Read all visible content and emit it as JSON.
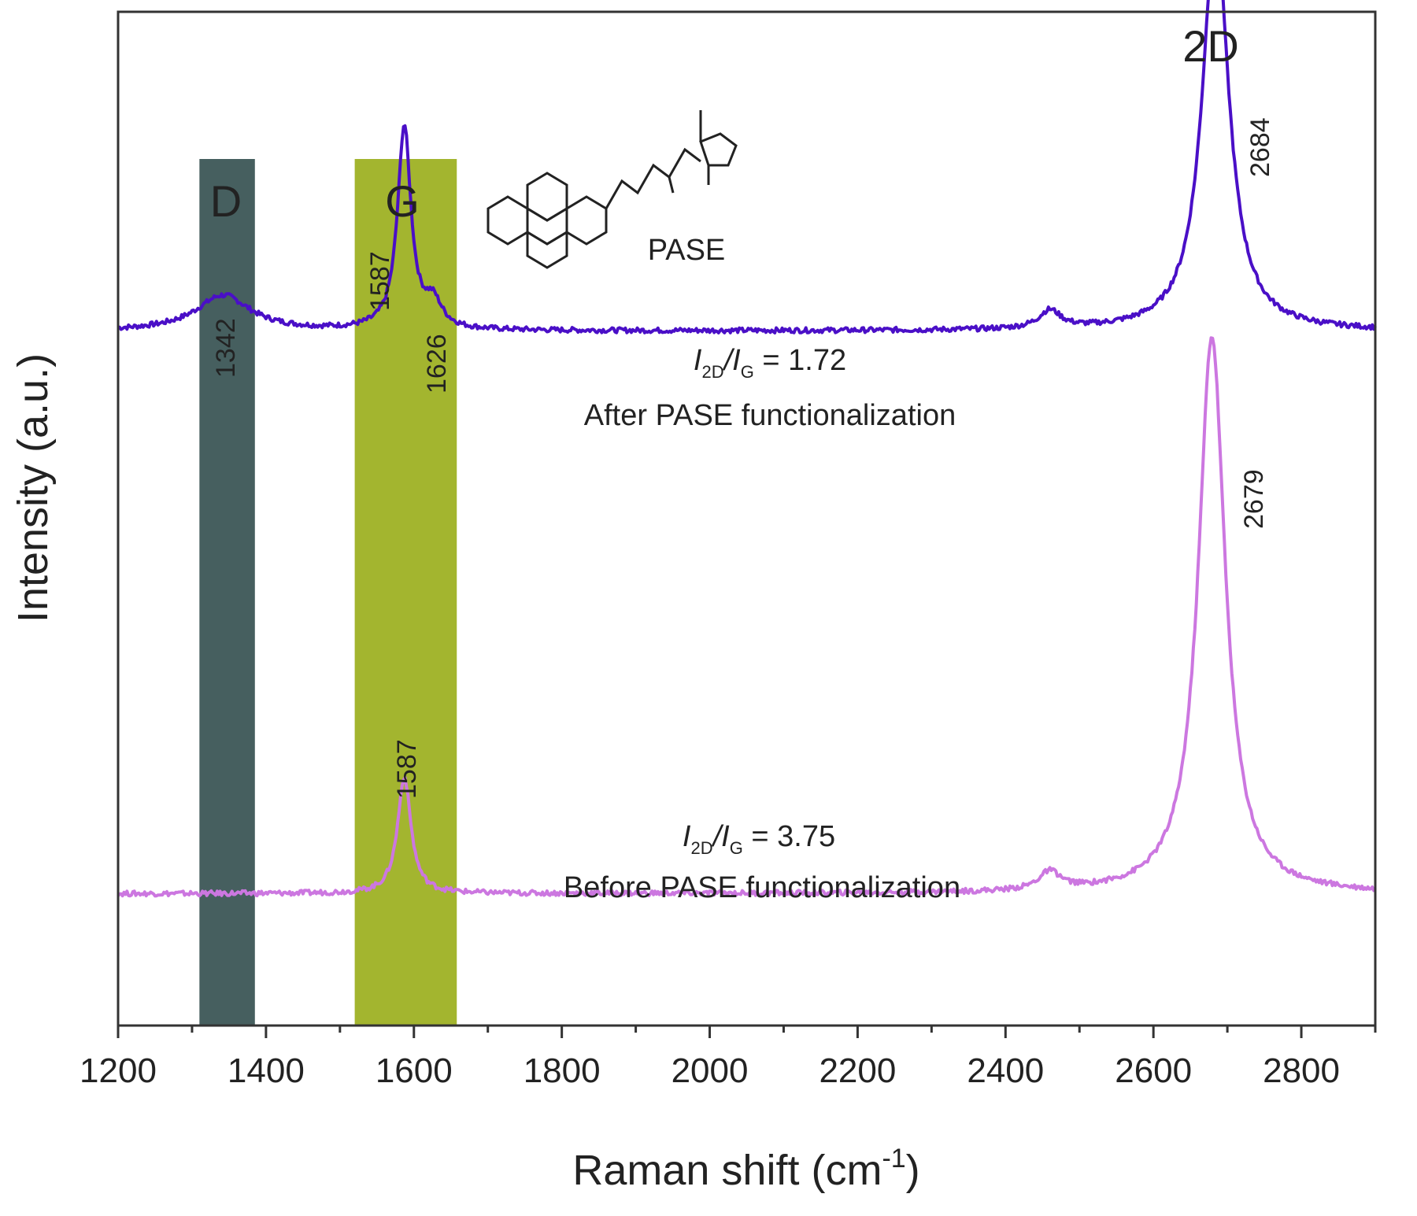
{
  "chart_data": {
    "type": "line",
    "xlabel": "Raman shift (cm",
    "xlabel_sup": "-1",
    "xlabel_close": ")",
    "ylabel": "Intensity (a.u.)",
    "xlim": [
      1200,
      2900
    ],
    "ylim": [
      0,
      100
    ],
    "x_ticks": [
      1200,
      1400,
      1600,
      1800,
      2000,
      2200,
      2400,
      2600,
      2800
    ],
    "x_minor_step": 100,
    "grid": false,
    "bands": [
      {
        "label": "D",
        "x_range": [
          1310,
          1385
        ],
        "color": "#465f5f"
      },
      {
        "label": "G",
        "x_range": [
          1520,
          1658
        ],
        "color": "#a3b52f"
      }
    ],
    "top_label": "2D",
    "inset_label": "PASE",
    "series": [
      {
        "name": "After PASE functionalization",
        "color": "#4a0fc7",
        "baseline": 68.5,
        "peaks": [
          {
            "center": 1342,
            "height": 3.5,
            "width": 45
          },
          {
            "center": 1587,
            "height": 20,
            "width": 11
          },
          {
            "center": 1626,
            "height": 2.5,
            "width": 14
          },
          {
            "center": 2460,
            "height": 1.8,
            "width": 18
          },
          {
            "center": 2684,
            "height": 39.5,
            "width": 22
          }
        ],
        "ratio_prefix": "I",
        "ratio_sub1": "2D",
        "ratio_mid": "/I",
        "ratio_sub2": "G",
        "ratio_value": " = 1.72",
        "peak_labels": [
          "1342",
          "1587",
          "1626",
          "2684"
        ]
      },
      {
        "name": "Before PASE functionalization",
        "color": "#cc77e0",
        "baseline": 13.0,
        "peaks": [
          {
            "center": 1587,
            "height": 11.5,
            "width": 11
          },
          {
            "center": 2460,
            "height": 1.8,
            "width": 18
          },
          {
            "center": 2679,
            "height": 55.0,
            "width": 22
          }
        ],
        "ratio_prefix": "I",
        "ratio_sub1": "2D",
        "ratio_mid": "/I",
        "ratio_sub2": "G",
        "ratio_value": " = 3.75",
        "peak_labels": [
          "1587",
          "2679"
        ]
      }
    ]
  }
}
